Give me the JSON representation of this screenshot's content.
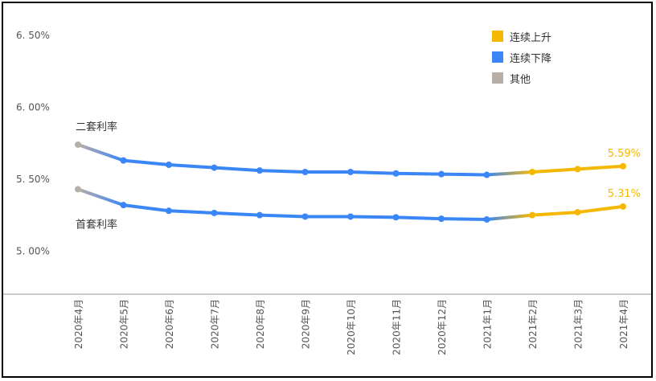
{
  "chart_data": {
    "type": "line",
    "categories": [
      "2020年4月",
      "2020年5月",
      "2020年6月",
      "2020年7月",
      "2020年8月",
      "2020年9月",
      "2020年10月",
      "2020年11月",
      "2020年12月",
      "2021年1月",
      "2021年2月",
      "2021年3月",
      "2021年4月"
    ],
    "ylim": [
      4.6,
      6.6
    ],
    "yticks": [
      {
        "value": 6.5,
        "label": "6. 50%"
      },
      {
        "value": 6.0,
        "label": "6. 00%"
      },
      {
        "value": 5.5,
        "label": "5. 50%"
      },
      {
        "value": 5.0,
        "label": "5. 00%"
      }
    ],
    "series": [
      {
        "name": "二套利率",
        "values": [
          5.74,
          5.63,
          5.6,
          5.58,
          5.56,
          5.55,
          5.55,
          5.54,
          5.535,
          5.53,
          5.55,
          5.57,
          5.59
        ],
        "end_label": "5.59%"
      },
      {
        "name": "首套利率",
        "values": [
          5.43,
          5.32,
          5.28,
          5.265,
          5.25,
          5.24,
          5.24,
          5.235,
          5.225,
          5.22,
          5.25,
          5.27,
          5.31
        ],
        "end_label": "5.31%"
      }
    ],
    "legend": [
      {
        "label": "连续上升",
        "color": "#F5B800"
      },
      {
        "label": "连续下降",
        "color": "#3A86F6"
      },
      {
        "label": "其他",
        "color": "#B7AEA8"
      }
    ],
    "colors": {
      "rise": "#F5B800",
      "fall": "#3A86F6",
      "other": "#B7AEA8"
    },
    "legend_position": "top-right",
    "grid": false
  }
}
